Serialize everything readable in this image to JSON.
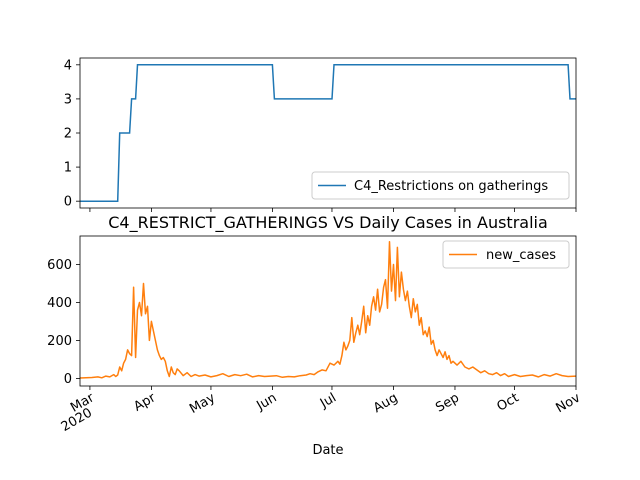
{
  "chart_data": [
    {
      "type": "line",
      "title": "",
      "xlabel": "",
      "ylabel": "",
      "x_range": [
        "2020-02-25",
        "2020-11-01"
      ],
      "ylim": [
        -0.2,
        4.2
      ],
      "yticks": [
        "0",
        "1",
        "2",
        "3",
        "4"
      ],
      "legend_position": "lower right",
      "grid": false,
      "series": [
        {
          "name": "C4_Restrictions on gatherings",
          "color": "#1f77b4",
          "step": true,
          "points": [
            [
              "2020-02-25",
              0
            ],
            [
              "2020-03-15",
              0
            ],
            [
              "2020-03-16",
              2
            ],
            [
              "2020-03-21",
              2
            ],
            [
              "2020-03-22",
              3
            ],
            [
              "2020-03-24",
              3
            ],
            [
              "2020-03-25",
              4
            ],
            [
              "2020-06-01",
              4
            ],
            [
              "2020-06-02",
              3
            ],
            [
              "2020-07-01",
              3
            ],
            [
              "2020-07-02",
              4
            ],
            [
              "2020-10-28",
              4
            ],
            [
              "2020-10-29",
              3
            ],
            [
              "2020-11-01",
              3
            ]
          ]
        }
      ]
    },
    {
      "type": "line",
      "title": "C4_RESTRICT_GATHERINGS VS Daily Cases in Australia",
      "xlabel": "Date",
      "ylabel": "",
      "x_range": [
        "2020-02-25",
        "2020-11-01"
      ],
      "ylim": [
        -40,
        750
      ],
      "yticks": [
        "0",
        "200",
        "400",
        "600"
      ],
      "xticks": [
        {
          "date": "2020-03-01",
          "label": "Mar",
          "year": "2020"
        },
        {
          "date": "2020-04-01",
          "label": "Apr"
        },
        {
          "date": "2020-05-01",
          "label": "May"
        },
        {
          "date": "2020-06-01",
          "label": "Jun"
        },
        {
          "date": "2020-07-01",
          "label": "Jul"
        },
        {
          "date": "2020-08-01",
          "label": "Aug"
        },
        {
          "date": "2020-09-01",
          "label": "Sep"
        },
        {
          "date": "2020-10-01",
          "label": "Oct"
        },
        {
          "date": "2020-11-01",
          "label": "Nov"
        }
      ],
      "legend_position": "upper right",
      "grid": false,
      "series": [
        {
          "name": "new_cases",
          "color": "#ff7f0e",
          "points": [
            [
              "2020-02-25",
              2
            ],
            [
              "2020-02-28",
              3
            ],
            [
              "2020-03-02",
              5
            ],
            [
              "2020-03-05",
              8
            ],
            [
              "2020-03-07",
              3
            ],
            [
              "2020-03-09",
              12
            ],
            [
              "2020-03-11",
              8
            ],
            [
              "2020-03-13",
              20
            ],
            [
              "2020-03-14",
              10
            ],
            [
              "2020-03-15",
              18
            ],
            [
              "2020-03-16",
              60
            ],
            [
              "2020-03-17",
              40
            ],
            [
              "2020-03-18",
              80
            ],
            [
              "2020-03-19",
              100
            ],
            [
              "2020-03-20",
              150
            ],
            [
              "2020-03-21",
              130
            ],
            [
              "2020-03-22",
              120
            ],
            [
              "2020-03-23",
              480
            ],
            [
              "2020-03-24",
              110
            ],
            [
              "2020-03-25",
              360
            ],
            [
              "2020-03-26",
              400
            ],
            [
              "2020-03-27",
              330
            ],
            [
              "2020-03-28",
              500
            ],
            [
              "2020-03-29",
              340
            ],
            [
              "2020-03-30",
              380
            ],
            [
              "2020-03-31",
              200
            ],
            [
              "2020-04-01",
              300
            ],
            [
              "2020-04-02",
              250
            ],
            [
              "2020-04-03",
              200
            ],
            [
              "2020-04-04",
              150
            ],
            [
              "2020-04-05",
              120
            ],
            [
              "2020-04-06",
              100
            ],
            [
              "2020-04-07",
              110
            ],
            [
              "2020-04-08",
              90
            ],
            [
              "2020-04-09",
              40
            ],
            [
              "2020-04-10",
              10
            ],
            [
              "2020-04-11",
              60
            ],
            [
              "2020-04-12",
              30
            ],
            [
              "2020-04-13",
              20
            ],
            [
              "2020-04-14",
              50
            ],
            [
              "2020-04-15",
              40
            ],
            [
              "2020-04-17",
              15
            ],
            [
              "2020-04-19",
              30
            ],
            [
              "2020-04-21",
              10
            ],
            [
              "2020-04-23",
              20
            ],
            [
              "2020-04-25",
              12
            ],
            [
              "2020-04-28",
              18
            ],
            [
              "2020-05-01",
              8
            ],
            [
              "2020-05-04",
              15
            ],
            [
              "2020-05-07",
              25
            ],
            [
              "2020-05-10",
              10
            ],
            [
              "2020-05-13",
              20
            ],
            [
              "2020-05-16",
              14
            ],
            [
              "2020-05-19",
              22
            ],
            [
              "2020-05-22",
              8
            ],
            [
              "2020-05-25",
              15
            ],
            [
              "2020-05-28",
              10
            ],
            [
              "2020-05-31",
              12
            ],
            [
              "2020-06-03",
              14
            ],
            [
              "2020-06-06",
              6
            ],
            [
              "2020-06-09",
              10
            ],
            [
              "2020-06-12",
              8
            ],
            [
              "2020-06-15",
              14
            ],
            [
              "2020-06-18",
              18
            ],
            [
              "2020-06-20",
              25
            ],
            [
              "2020-06-22",
              20
            ],
            [
              "2020-06-24",
              35
            ],
            [
              "2020-06-26",
              45
            ],
            [
              "2020-06-28",
              40
            ],
            [
              "2020-06-30",
              80
            ],
            [
              "2020-07-02",
              70
            ],
            [
              "2020-07-04",
              90
            ],
            [
              "2020-07-05",
              75
            ],
            [
              "2020-07-06",
              120
            ],
            [
              "2020-07-07",
              190
            ],
            [
              "2020-07-08",
              150
            ],
            [
              "2020-07-09",
              170
            ],
            [
              "2020-07-10",
              200
            ],
            [
              "2020-07-11",
              320
            ],
            [
              "2020-07-12",
              190
            ],
            [
              "2020-07-13",
              240
            ],
            [
              "2020-07-14",
              280
            ],
            [
              "2020-07-15",
              230
            ],
            [
              "2020-07-16",
              300
            ],
            [
              "2020-07-17",
              380
            ],
            [
              "2020-07-18",
              240
            ],
            [
              "2020-07-19",
              330
            ],
            [
              "2020-07-20",
              280
            ],
            [
              "2020-07-21",
              380
            ],
            [
              "2020-07-22",
              430
            ],
            [
              "2020-07-23",
              360
            ],
            [
              "2020-07-24",
              470
            ],
            [
              "2020-07-25",
              350
            ],
            [
              "2020-07-26",
              390
            ],
            [
              "2020-07-27",
              480
            ],
            [
              "2020-07-28",
              520
            ],
            [
              "2020-07-29",
              370
            ],
            [
              "2020-07-30",
              720
            ],
            [
              "2020-07-31",
              460
            ],
            [
              "2020-08-01",
              600
            ],
            [
              "2020-08-02",
              410
            ],
            [
              "2020-08-03",
              690
            ],
            [
              "2020-08-04",
              430
            ],
            [
              "2020-08-05",
              560
            ],
            [
              "2020-08-06",
              470
            ],
            [
              "2020-08-07",
              410
            ],
            [
              "2020-08-08",
              460
            ],
            [
              "2020-08-09",
              380
            ],
            [
              "2020-08-10",
              320
            ],
            [
              "2020-08-11",
              420
            ],
            [
              "2020-08-12",
              350
            ],
            [
              "2020-08-13",
              390
            ],
            [
              "2020-08-14",
              280
            ],
            [
              "2020-08-15",
              320
            ],
            [
              "2020-08-16",
              230
            ],
            [
              "2020-08-17",
              250
            ],
            [
              "2020-08-18",
              220
            ],
            [
              "2020-08-19",
              270
            ],
            [
              "2020-08-20",
              180
            ],
            [
              "2020-08-21",
              200
            ],
            [
              "2020-08-22",
              150
            ],
            [
              "2020-08-23",
              120
            ],
            [
              "2020-08-24",
              150
            ],
            [
              "2020-08-25",
              130
            ],
            [
              "2020-08-26",
              110
            ],
            [
              "2020-08-27",
              140
            ],
            [
              "2020-08-28",
              100
            ],
            [
              "2020-08-29",
              120
            ],
            [
              "2020-08-30",
              80
            ],
            [
              "2020-08-31",
              90
            ],
            [
              "2020-09-02",
              70
            ],
            [
              "2020-09-04",
              90
            ],
            [
              "2020-09-06",
              60
            ],
            [
              "2020-09-08",
              50
            ],
            [
              "2020-09-10",
              60
            ],
            [
              "2020-09-12",
              45
            ],
            [
              "2020-09-14",
              30
            ],
            [
              "2020-09-16",
              40
            ],
            [
              "2020-09-18",
              25
            ],
            [
              "2020-09-20",
              20
            ],
            [
              "2020-09-22",
              30
            ],
            [
              "2020-09-24",
              15
            ],
            [
              "2020-09-26",
              25
            ],
            [
              "2020-09-28",
              10
            ],
            [
              "2020-10-01",
              20
            ],
            [
              "2020-10-04",
              10
            ],
            [
              "2020-10-07",
              15
            ],
            [
              "2020-10-10",
              18
            ],
            [
              "2020-10-13",
              8
            ],
            [
              "2020-10-16",
              20
            ],
            [
              "2020-10-19",
              12
            ],
            [
              "2020-10-22",
              25
            ],
            [
              "2020-10-25",
              15
            ],
            [
              "2020-10-28",
              10
            ],
            [
              "2020-11-01",
              12
            ]
          ]
        }
      ]
    }
  ]
}
